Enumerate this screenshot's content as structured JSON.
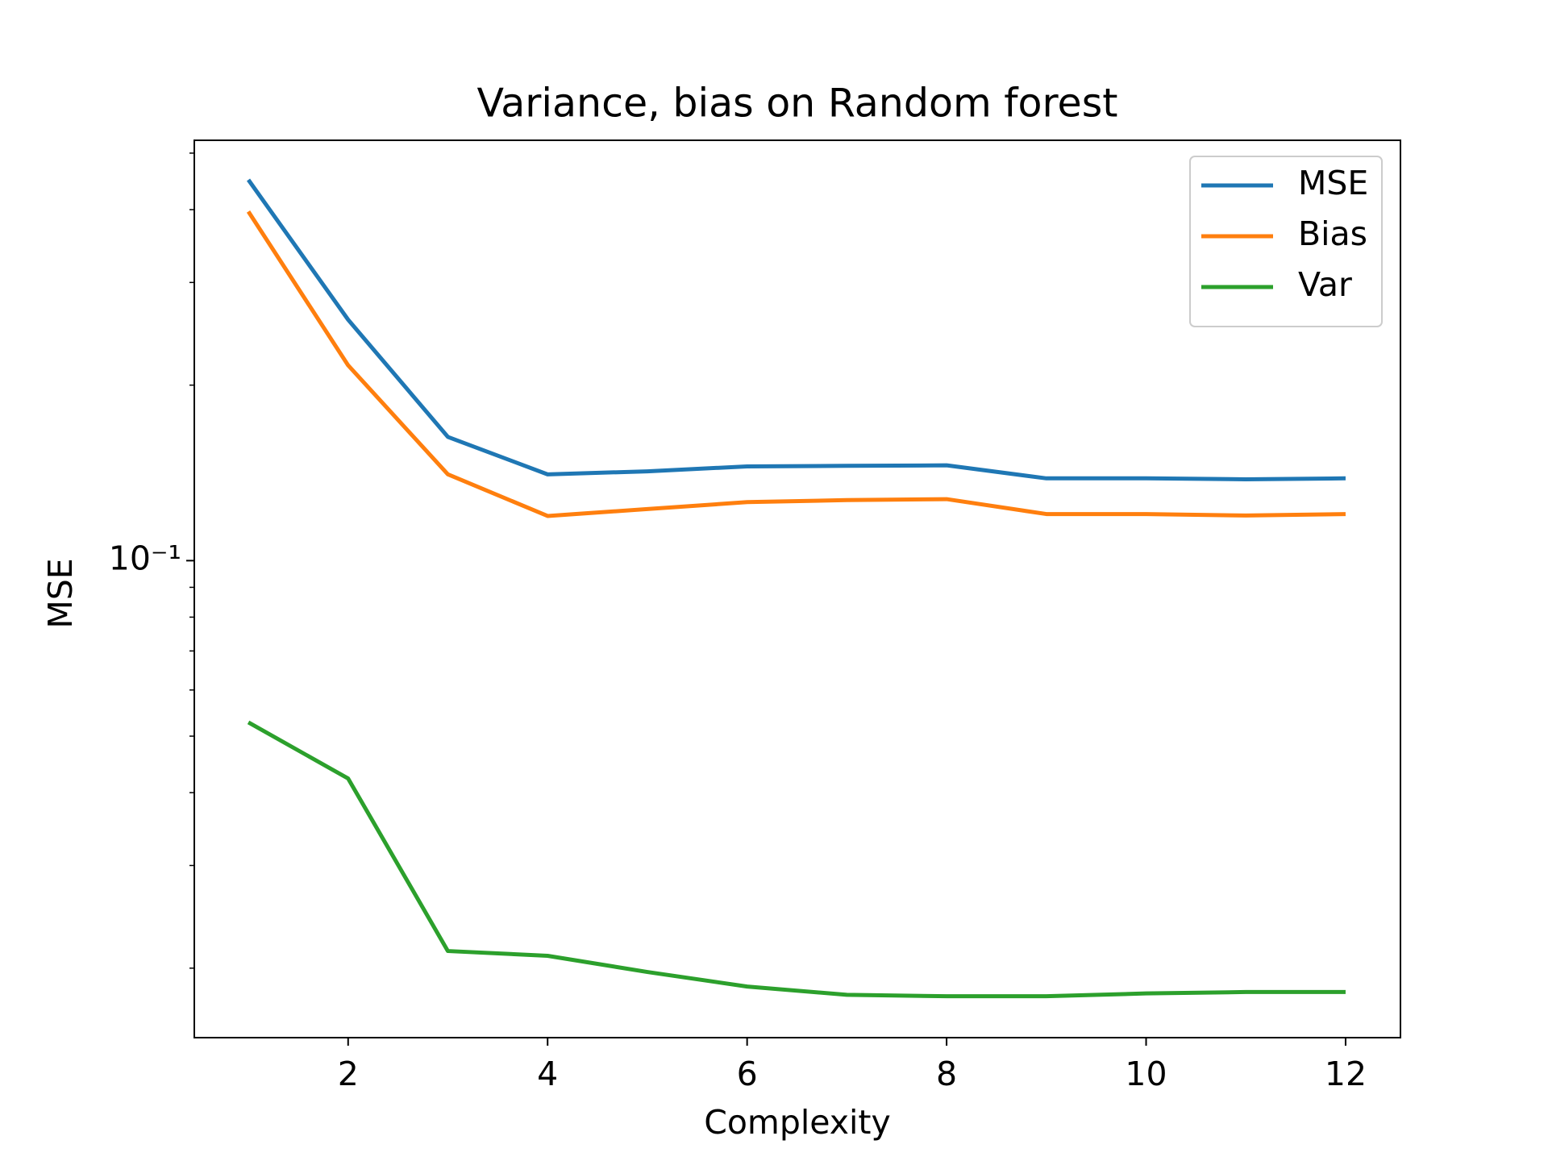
{
  "chart_data": {
    "type": "line",
    "title": "Variance, bias on Random forest",
    "xlabel": "Complexity",
    "ylabel": "MSE",
    "x": [
      1,
      2,
      3,
      4,
      5,
      6,
      7,
      8,
      9,
      10,
      11,
      12
    ],
    "series": [
      {
        "name": "MSE",
        "color": "#1f77b4",
        "values": [
          0.45,
          0.259,
          0.163,
          0.1406,
          0.1423,
          0.1451,
          0.1454,
          0.1457,
          0.1384,
          0.1384,
          0.1379,
          0.1384
        ]
      },
      {
        "name": "Bias",
        "color": "#ff7f0e",
        "values": [
          0.397,
          0.2163,
          0.1406,
          0.1193,
          0.1226,
          0.126,
          0.127,
          0.1275,
          0.1202,
          0.1202,
          0.1195,
          0.1202
        ]
      },
      {
        "name": "Var",
        "color": "#2ca02c",
        "values": [
          0.0528,
          0.0423,
          0.0214,
          0.021,
          0.0197,
          0.0186,
          0.018,
          0.0179,
          0.0179,
          0.0181,
          0.0182,
          0.0182
        ]
      }
    ],
    "xlim": [
      0.458,
      12.55
    ],
    "xticks": [
      2,
      4,
      6,
      8,
      10,
      12
    ],
    "ylim": [
      0.0152,
      0.526
    ],
    "yscale": "log",
    "yticks": [
      {
        "value": 0.1,
        "label": "10⁻¹"
      }
    ],
    "yminorticks": [
      0.02,
      0.03,
      0.04,
      0.05,
      0.06,
      0.07,
      0.08,
      0.09,
      0.2,
      0.3,
      0.4,
      0.5
    ],
    "legend": "upper right",
    "grid": false
  }
}
